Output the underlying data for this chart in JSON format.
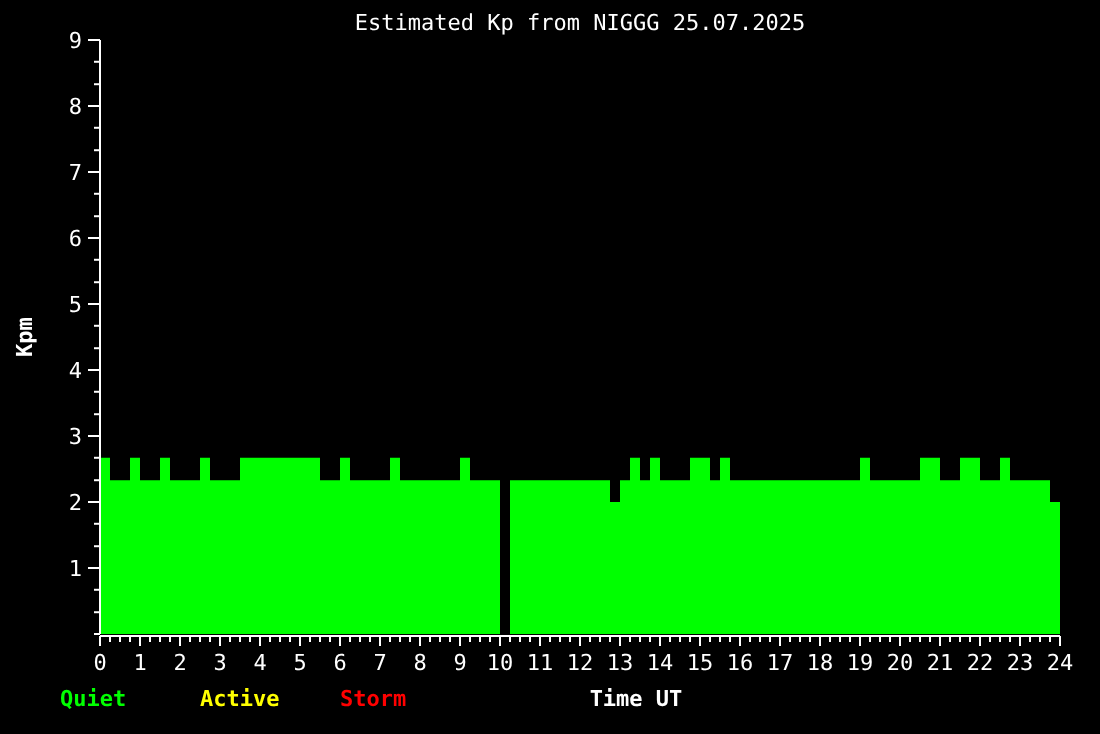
{
  "chart_data": {
    "type": "area",
    "title": "Estimated Kp from NIGGG 25.07.2025",
    "xlabel": "Time UT",
    "ylabel": "Kpm",
    "x": [
      0,
      0.25,
      0.5,
      0.75,
      1,
      1.25,
      1.5,
      1.75,
      2,
      2.25,
      2.5,
      2.75,
      3,
      3.25,
      3.5,
      3.75,
      4,
      4.25,
      4.5,
      4.75,
      5,
      5.25,
      5.5,
      5.75,
      6,
      6.25,
      6.5,
      6.75,
      7,
      7.25,
      7.5,
      7.75,
      8,
      8.25,
      8.5,
      8.75,
      9,
      9.25,
      9.5,
      9.75,
      10,
      10.25,
      10.5,
      10.75,
      11,
      11.25,
      11.5,
      11.75,
      12,
      12.25,
      12.5,
      12.75,
      13,
      13.25,
      13.5,
      13.75,
      14,
      14.25,
      14.5,
      14.75,
      15,
      15.25,
      15.5,
      15.75,
      16,
      16.25,
      16.5,
      16.75,
      17,
      17.25,
      17.5,
      17.75,
      18,
      18.25,
      18.5,
      18.75,
      19,
      19.25,
      19.5,
      19.75,
      20,
      20.25,
      20.5,
      20.75,
      21,
      21.25,
      21.5,
      21.75,
      22,
      22.25,
      22.5,
      22.75,
      23,
      23.25,
      23.5,
      23.75,
      24
    ],
    "series": [
      {
        "name": "Quiet",
        "color": "#00ff00",
        "values": [
          2.67,
          2.33,
          2.33,
          2.67,
          2.33,
          2.33,
          2.67,
          2.33,
          2.33,
          2.33,
          2.67,
          2.33,
          2.33,
          2.33,
          2.67,
          2.67,
          2.67,
          2.67,
          2.67,
          2.67,
          2.67,
          2.67,
          2.33,
          2.33,
          2.67,
          2.33,
          2.33,
          2.33,
          2.33,
          2.67,
          2.33,
          2.33,
          2.33,
          2.33,
          2.33,
          2.33,
          2.67,
          2.33,
          2.33,
          2.33,
          null,
          2.33,
          2.33,
          2.33,
          2.33,
          2.33,
          2.33,
          2.33,
          2.33,
          2.33,
          2.33,
          2,
          2.33,
          2.67,
          2.33,
          2.67,
          2.33,
          2.33,
          2.33,
          2.67,
          2.67,
          2.33,
          2.67,
          2.33,
          2.33,
          2.33,
          2.33,
          2.33,
          2.33,
          2.33,
          2.33,
          2.33,
          2.33,
          2.33,
          2.33,
          2.33,
          2.67,
          2.33,
          2.33,
          2.33,
          2.33,
          2.33,
          2.67,
          2.67,
          2.33,
          2.33,
          2.67,
          2.67,
          2.33,
          2.33,
          2.67,
          2.33,
          2.33,
          2.33,
          2.33,
          2,
          2
        ]
      },
      {
        "name": "Active",
        "color": "#ffff00",
        "values": [
          null,
          null,
          null,
          null,
          null,
          null,
          null,
          null,
          null,
          null,
          null,
          null,
          null,
          null,
          null,
          null,
          null,
          null,
          null,
          null,
          null,
          null,
          null,
          null,
          null,
          null,
          null,
          null,
          null,
          null,
          null,
          null,
          null,
          null,
          null,
          null,
          null,
          null,
          null,
          null,
          null,
          null,
          null,
          null,
          null,
          null,
          null,
          null,
          null,
          null,
          null,
          null,
          null,
          null,
          null,
          null,
          null,
          null,
          null,
          null,
          null,
          null,
          null,
          null,
          null,
          null,
          null,
          null,
          null,
          null,
          null,
          null,
          null,
          null,
          null,
          null,
          null,
          null,
          null,
          null,
          null,
          null,
          null,
          null,
          null,
          null,
          null,
          null,
          null,
          null,
          null,
          null,
          null,
          null,
          null,
          null,
          null
        ]
      },
      {
        "name": "Storm",
        "color": "#ff0000",
        "values": [
          null,
          null,
          null,
          null,
          null,
          null,
          null,
          null,
          null,
          null,
          null,
          null,
          null,
          null,
          null,
          null,
          null,
          null,
          null,
          null,
          null,
          null,
          null,
          null,
          null,
          null,
          null,
          null,
          null,
          null,
          null,
          null,
          null,
          null,
          null,
          null,
          null,
          null,
          null,
          null,
          null,
          null,
          null,
          null,
          null,
          null,
          null,
          null,
          null,
          null,
          null,
          null,
          null,
          null,
          null,
          null,
          null,
          null,
          null,
          null,
          null,
          null,
          null,
          null,
          null,
          null,
          null,
          null,
          null,
          null,
          null,
          null,
          null,
          null,
          null,
          null,
          null,
          null,
          null,
          null,
          null,
          null,
          null,
          null,
          null,
          null,
          null,
          null,
          null,
          null,
          null,
          null,
          null,
          null,
          null,
          null,
          null
        ]
      }
    ],
    "xlim": [
      0,
      24
    ],
    "xticks": [
      0,
      {
        "value": 0.25,
        "label": null
      },
      {
        "value": 0.5,
        "label": null
      },
      {
        "value": 0.75,
        "label": null
      },
      1,
      {
        "value": 1.25,
        "label": null
      },
      {
        "value": 1.5,
        "label": null
      },
      {
        "value": 1.75,
        "label": null
      },
      2,
      {
        "value": 2.25,
        "label": null
      },
      {
        "value": 2.5,
        "label": null
      },
      {
        "value": 2.75,
        "label": null
      },
      3,
      {
        "value": 3.25,
        "label": null
      },
      {
        "value": 3.5,
        "label": null
      },
      {
        "value": 3.75,
        "label": null
      },
      4,
      {
        "value": 4.25,
        "label": null
      },
      {
        "value": 4.5,
        "label": null
      },
      {
        "value": 4.75,
        "label": null
      },
      5,
      {
        "value": 5.25,
        "label": null
      },
      {
        "value": 5.5,
        "label": null
      },
      {
        "value": 5.75,
        "label": null
      },
      6,
      {
        "value": 6.25,
        "label": null
      },
      {
        "value": 6.5,
        "label": null
      },
      {
        "value": 6.75,
        "label": null
      },
      7,
      {
        "value": 7.25,
        "label": null
      },
      {
        "value": 7.5,
        "label": null
      },
      {
        "value": 7.75,
        "label": null
      },
      8,
      {
        "value": 8.25,
        "label": null
      },
      {
        "value": 8.5,
        "label": null
      },
      {
        "value": 8.75,
        "label": null
      },
      9,
      {
        "value": 9.25,
        "label": null
      },
      {
        "value": 9.5,
        "label": null
      },
      {
        "value": 9.75,
        "label": null
      },
      10,
      {
        "value": 10.25,
        "label": null
      },
      {
        "value": 10.5,
        "label": null
      },
      {
        "value": 10.75,
        "label": null
      },
      11,
      {
        "value": 11.25,
        "label": null
      },
      {
        "value": 11.5,
        "label": null
      },
      {
        "value": 11.75,
        "label": null
      },
      12,
      {
        "value": 12.25,
        "label": null
      },
      {
        "value": 12.5,
        "label": null
      },
      {
        "value": 12.75,
        "label": null
      },
      13,
      {
        "value": 13.25,
        "label": null
      },
      {
        "value": 13.5,
        "label": null
      },
      {
        "value": 13.75,
        "label": null
      },
      14,
      {
        "value": 14.25,
        "label": null
      },
      {
        "value": 14.5,
        "label": null
      },
      {
        "value": 14.75,
        "label": null
      },
      15,
      {
        "value": 15.25,
        "label": null
      },
      {
        "value": 15.5,
        "label": null
      },
      {
        "value": 15.75,
        "label": null
      },
      16,
      {
        "value": 16.25,
        "label": null
      },
      {
        "value": 16.5,
        "label": null
      },
      {
        "value": 16.75,
        "label": null
      },
      17,
      {
        "value": 17.25,
        "label": null
      },
      {
        "value": 17.5,
        "label": null
      },
      {
        "value": 17.75,
        "label": null
      },
      18,
      {
        "value": 18.25,
        "label": null
      },
      {
        "value": 18.5,
        "label": null
      },
      {
        "value": 18.75,
        "label": null
      },
      19,
      {
        "value": 19.25,
        "label": null
      },
      {
        "value": 19.5,
        "label": null
      },
      {
        "value": 19.75,
        "label": null
      },
      20,
      {
        "value": 20.25,
        "label": null
      },
      {
        "value": 20.5,
        "label": null
      },
      {
        "value": 20.75,
        "label": null
      },
      21,
      {
        "value": 21.25,
        "label": null
      },
      {
        "value": 21.5,
        "label": null
      },
      {
        "value": 21.75,
        "label": null
      },
      22,
      {
        "value": 22.25,
        "label": null
      },
      {
        "value": 22.5,
        "label": null
      },
      {
        "value": 22.75,
        "label": null
      },
      23,
      {
        "value": 23.25,
        "label": null
      },
      {
        "value": 23.5,
        "label": null
      },
      {
        "value": 23.75,
        "label": null
      },
      24
    ],
    "ylim": [
      0,
      9
    ],
    "yticks": [
      {
        "value": 0,
        "label": null
      },
      {
        "value": 0.33,
        "label": null
      },
      {
        "value": 0.67,
        "label": null
      },
      1,
      {
        "value": 1.33,
        "label": null
      },
      {
        "value": 1.67,
        "label": null
      },
      2,
      {
        "value": 2.33,
        "label": null
      },
      {
        "value": 2.67,
        "label": null
      },
      3,
      {
        "value": 3.33,
        "label": null
      },
      {
        "value": 3.67,
        "label": null
      },
      4,
      {
        "value": 4.33,
        "label": null
      },
      {
        "value": 4.67,
        "label": null
      },
      5,
      {
        "value": 5.33,
        "label": null
      },
      {
        "value": 5.67,
        "label": null
      },
      6,
      {
        "value": 6.33,
        "label": null
      },
      {
        "value": 6.67,
        "label": null
      },
      7,
      {
        "value": 7.33,
        "label": null
      },
      {
        "value": 7.67,
        "label": null
      },
      8,
      {
        "value": 8.33,
        "label": null
      },
      {
        "value": 8.67,
        "label": null
      },
      9
    ],
    "legend": "bottom left",
    "grid": false
  }
}
